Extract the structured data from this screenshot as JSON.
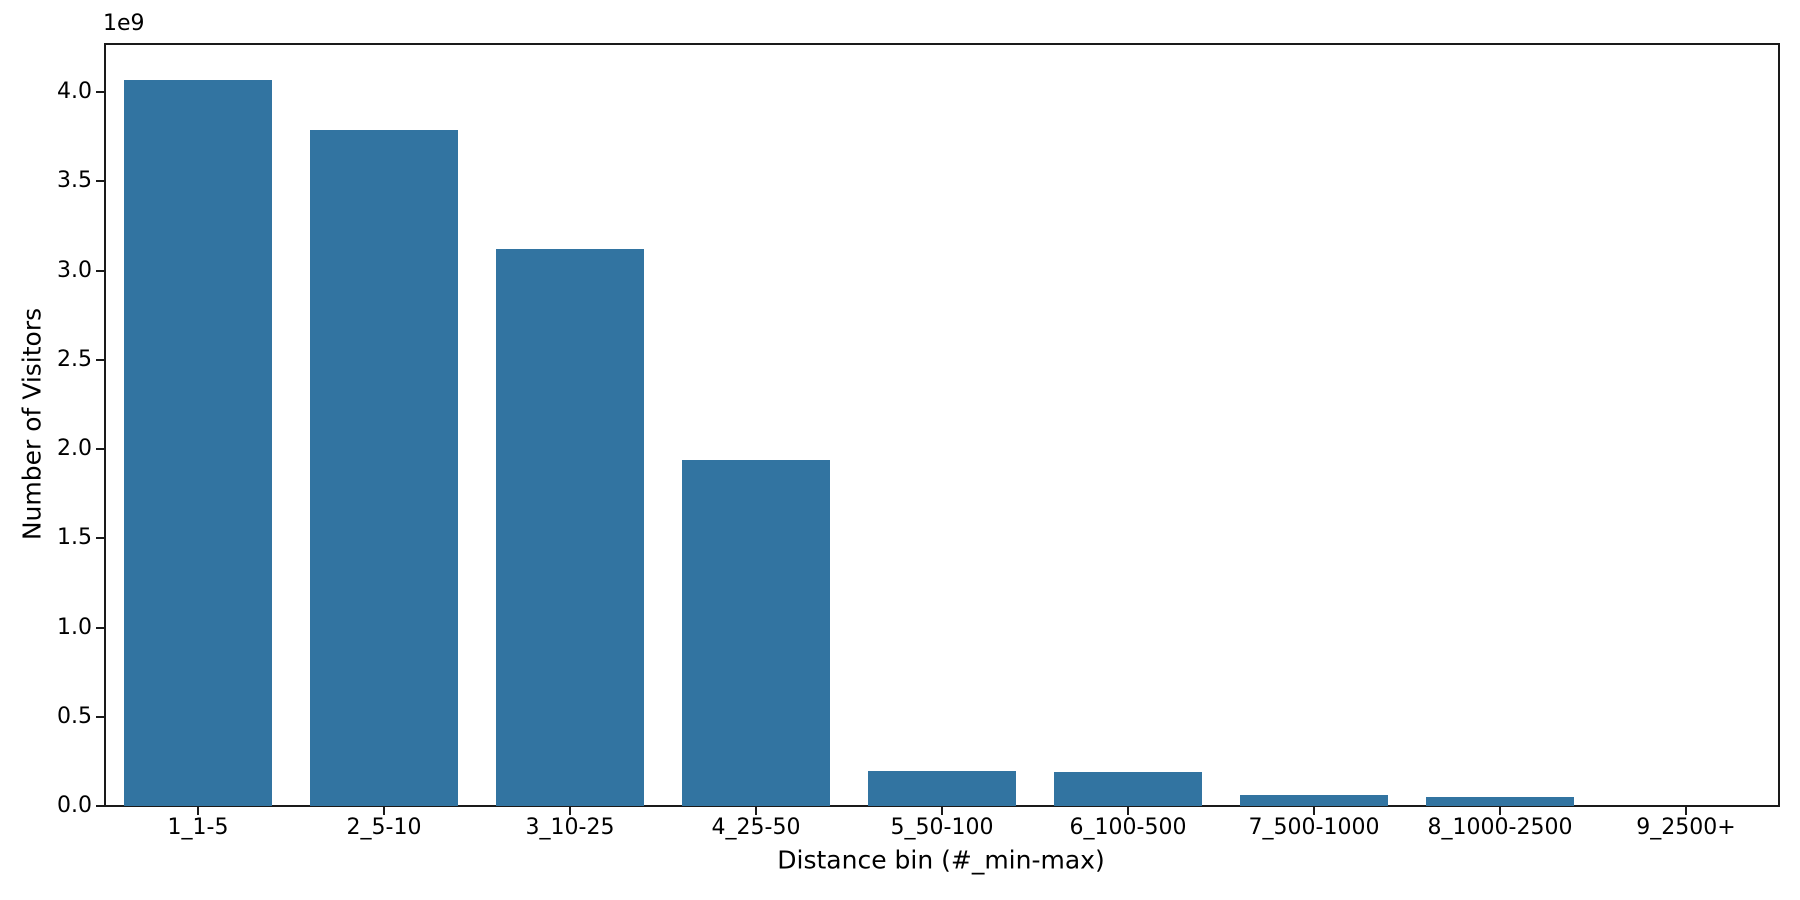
{
  "chart_data": {
    "type": "bar",
    "title": "",
    "xlabel": "Distance bin (#_min-max)",
    "ylabel": "Number of Visitors",
    "offset_text": "1e9",
    "categories": [
      "1_1-5",
      "2_5-10",
      "3_10-25",
      "4_25-50",
      "5_50-100",
      "6_100-500",
      "7_500-1000",
      "8_1000-2500",
      "9_2500+"
    ],
    "values": [
      4070000000,
      3790000000,
      3120000000,
      1940000000,
      196000000,
      190000000,
      60000000,
      50000000,
      2000000
    ],
    "values_e9": [
      4.07,
      3.79,
      3.12,
      1.94,
      0.196,
      0.19,
      0.06,
      0.05,
      0.002
    ],
    "yticks": [
      0,
      500000000,
      1000000000,
      1500000000,
      2000000000,
      2500000000,
      3000000000,
      3500000000,
      4000000000
    ],
    "ytick_labels": [
      "0.0",
      "0.5",
      "1.0",
      "1.5",
      "2.0",
      "2.5",
      "3.0",
      "3.5",
      "4.0"
    ],
    "ylim": [
      0,
      4270000000
    ],
    "bar_width_fraction": 0.8,
    "bar_color": "#3274a1",
    "axis_color": "#1a1a1a",
    "text_color": "#000000",
    "grid": false,
    "legend": null
  }
}
